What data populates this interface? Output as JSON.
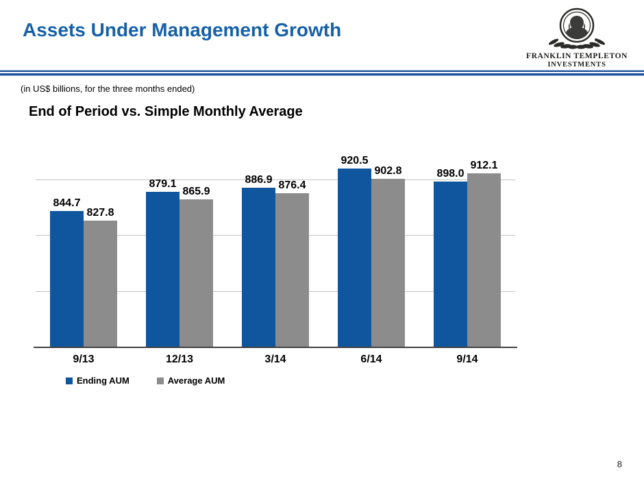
{
  "header": {
    "title": "Assets Under Management Growth",
    "logo": {
      "line1": "FRANKLIN TEMPLETON",
      "line2": "INVESTMENTS"
    }
  },
  "subtitle": "(in US$ billions, for the three months ended)",
  "section_heading": "End of Period vs. Simple Monthly Average",
  "page_number": "8",
  "chart_data": {
    "type": "bar",
    "title": "End of Period vs. Simple Monthly Average",
    "categories": [
      "9/13",
      "12/13",
      "3/14",
      "6/14",
      "9/14"
    ],
    "series": [
      {
        "name": "Ending AUM",
        "color": "#0F569E",
        "values": [
          844.7,
          879.1,
          886.9,
          920.5,
          898.0
        ]
      },
      {
        "name": "Average AUM",
        "color": "#8C8C8C",
        "values": [
          827.8,
          865.9,
          876.4,
          902.8,
          912.1
        ]
      }
    ],
    "ylabel": "",
    "xlabel": "",
    "ylim": [
      600,
      940
    ],
    "gridlines": [
      700,
      800,
      900
    ],
    "grid": true,
    "value_labels": true,
    "value_format": "0.1f",
    "legend_position": "bottom-left"
  },
  "colors": {
    "title_blue": "#1560A8",
    "rule_dark_blue": "#1F4E97",
    "rule_light_blue": "#9CC2E5",
    "gridline": "#C3C3C3",
    "axis": "#404040",
    "bar_blue": "#0F569E",
    "bar_gray": "#8C8C8C"
  }
}
